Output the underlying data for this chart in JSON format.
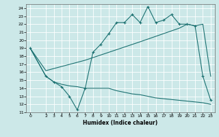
{
  "xlabel": "Humidex (Indice chaleur)",
  "bg_color": "#cce8e8",
  "line_color": "#1a7070",
  "grid_color": "#ffffff",
  "xlim": [
    -0.5,
    23.5
  ],
  "ylim": [
    11,
    24.5
  ],
  "xticks": [
    0,
    2,
    3,
    4,
    5,
    6,
    7,
    8,
    9,
    10,
    11,
    12,
    13,
    14,
    15,
    16,
    17,
    18,
    19,
    20,
    21,
    22,
    23
  ],
  "yticks": [
    11,
    12,
    13,
    14,
    15,
    16,
    17,
    18,
    19,
    20,
    21,
    22,
    23,
    24
  ],
  "line1_x": [
    0,
    2,
    3,
    4,
    5,
    6,
    7,
    8,
    9,
    10,
    11,
    12,
    13,
    14,
    15,
    16,
    17,
    18,
    19,
    20,
    21,
    22,
    23
  ],
  "line1_y": [
    19,
    15.5,
    14.8,
    14.2,
    13.0,
    11.3,
    14.0,
    18.5,
    19.5,
    20.8,
    22.2,
    22.2,
    23.2,
    22.2,
    24.2,
    22.2,
    22.5,
    23.2,
    22.0,
    22.0,
    21.8,
    15.5,
    12.5
  ],
  "line2_x": [
    0,
    2,
    7,
    14,
    19,
    20,
    21,
    22,
    23
  ],
  "line2_y": [
    19,
    16.2,
    17.5,
    19.8,
    21.5,
    22.0,
    21.8,
    22.0,
    15.5
  ],
  "line3_x": [
    0,
    2,
    3,
    4,
    5,
    6,
    7,
    8,
    9,
    10,
    11,
    12,
    13,
    14,
    15,
    16,
    17,
    18,
    19,
    20,
    21,
    22,
    23
  ],
  "line3_y": [
    19,
    15.5,
    14.8,
    14.5,
    14.3,
    14.2,
    14.0,
    14.0,
    14.0,
    14.0,
    13.7,
    13.5,
    13.3,
    13.2,
    13.0,
    12.8,
    12.7,
    12.6,
    12.5,
    12.4,
    12.3,
    12.2,
    12.0
  ]
}
